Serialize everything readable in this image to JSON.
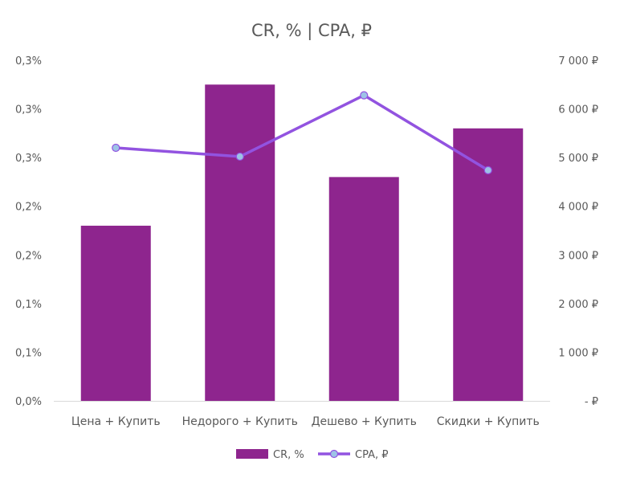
{
  "chart_data": {
    "type": "bar",
    "title": "CR, % | CPA, ₽",
    "categories": [
      "Цена + Купить",
      "Недорого + Купить",
      "Дешево + Купить",
      "Скидки + Купить"
    ],
    "series": [
      {
        "name": "CR, %",
        "type": "bar",
        "axis": "left",
        "color": "#8E258E",
        "values": [
          0.18,
          0.325,
          0.23,
          0.28
        ]
      },
      {
        "name": "CPA, ₽",
        "type": "line",
        "axis": "right",
        "color": "#9253E0",
        "marker_color": "#9DC3E6",
        "values": [
          5200,
          5020,
          6280,
          4740
        ]
      }
    ],
    "y_left": {
      "range": [
        0,
        0.35
      ],
      "ticks": [
        0,
        0.05,
        0.1,
        0.15,
        0.2,
        0.25,
        0.3,
        0.35
      ],
      "tick_labels": [
        "0,0%",
        "0,1%",
        "0,1%",
        "0,2%",
        "0,2%",
        "0,3%",
        "0,3%",
        "0,3%"
      ]
    },
    "y_right": {
      "range": [
        0,
        7000
      ],
      "ticks": [
        0,
        1000,
        2000,
        3000,
        4000,
        5000,
        6000,
        7000
      ],
      "tick_labels": [
        "-  ₽",
        "1 000 ₽",
        "2 000 ₽",
        "3 000 ₽",
        "4 000 ₽",
        "5 000 ₽",
        "6 000 ₽",
        "7 000 ₽"
      ]
    },
    "legend": {
      "position": "bottom",
      "entries": [
        "CR, %",
        "CPA, ₽"
      ]
    },
    "grid": false
  }
}
